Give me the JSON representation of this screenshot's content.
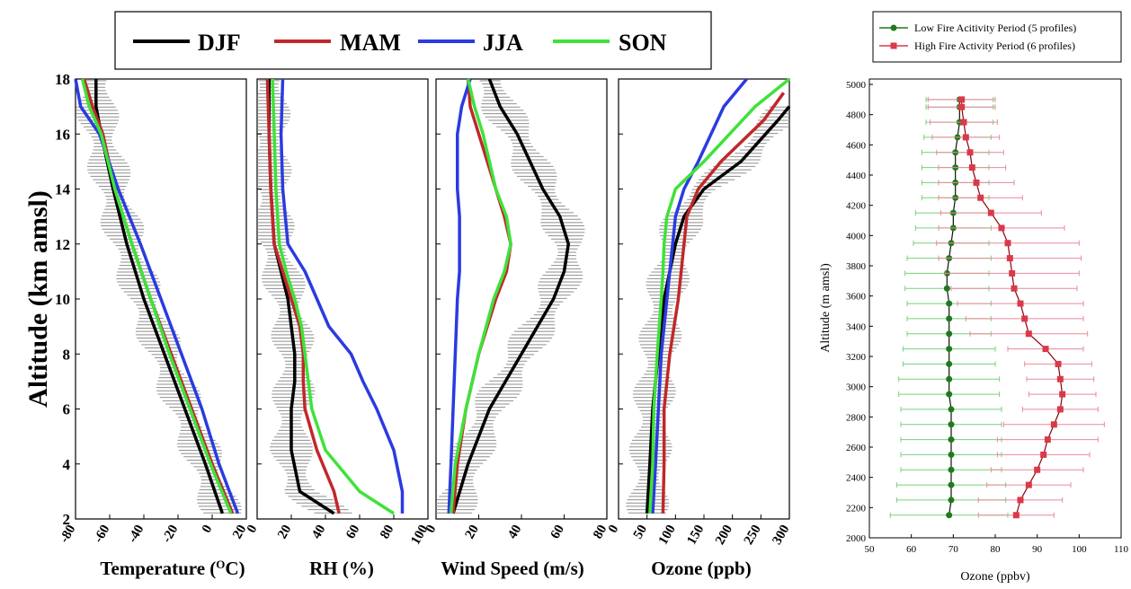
{
  "left_figure": {
    "legend": [
      {
        "label": "DJF",
        "color": "#000000"
      },
      {
        "label": "MAM",
        "color": "#c0282a"
      },
      {
        "label": "JJA",
        "color": "#2a3be0"
      },
      {
        "label": "SON",
        "color": "#3fe23a"
      }
    ],
    "y_axis_label": "Altitude (km amsl)",
    "y_ticks": [
      "2",
      "4",
      "6",
      "8",
      "10",
      "12",
      "14",
      "16",
      "18"
    ],
    "panels": [
      {
        "key": "temp",
        "xlabel_main": "Temperature (",
        "xlabel_sup": "O",
        "xlabel_tail": "C)",
        "x_ticks": [
          "-80",
          "-60",
          "-40",
          "-20",
          "0",
          "20"
        ]
      },
      {
        "key": "rh",
        "xlabel": "RH (%)",
        "x_ticks": [
          "0",
          "20",
          "40",
          "60",
          "80",
          "100"
        ]
      },
      {
        "key": "wind",
        "xlabel": "Wind Speed (m/s)",
        "x_ticks": [
          "0",
          "20",
          "40",
          "60",
          "80"
        ]
      },
      {
        "key": "ozone",
        "xlabel": "Ozone (ppb)",
        "x_ticks": [
          "0",
          "50",
          "100",
          "150",
          "200",
          "250",
          "300"
        ]
      }
    ]
  },
  "right_figure": {
    "legend": [
      {
        "label": "Low Fire Acitivity Period (5 profiles)",
        "color": "#1f7a1f"
      },
      {
        "label": "High Fire Activity Period (6 profiles)",
        "color": "#d93a4a"
      }
    ],
    "y_axis_label": "Altitude (m amsl)",
    "x_axis_label": "Ozone (ppbv)",
    "x_ticks": [
      "50",
      "60",
      "70",
      "80",
      "90",
      "100",
      "110"
    ],
    "y_ticks": [
      "2000",
      "2200",
      "2400",
      "2600",
      "2800",
      "3000",
      "3200",
      "3400",
      "3600",
      "3800",
      "4000",
      "4200",
      "4400",
      "4600",
      "4800",
      "5000"
    ]
  },
  "chart_data": [
    {
      "type": "line",
      "title": "",
      "xlabel": "Temperature (OC)",
      "ylabel": "Altitude (km amsl)",
      "xlim": [
        -80,
        20
      ],
      "ylim": [
        2,
        18
      ],
      "series": [
        {
          "name": "DJF",
          "color": "#000000",
          "x": [
            -68,
            -68,
            -65,
            -58,
            -50,
            -40,
            -28,
            -16,
            -4,
            6
          ],
          "y": [
            18,
            17,
            16,
            14,
            12,
            10,
            8,
            6,
            4,
            2.2
          ]
        },
        {
          "name": "MAM",
          "color": "#c0282a",
          "x": [
            -75,
            -70,
            -64,
            -57,
            -47,
            -36,
            -24,
            -12,
            0,
            12
          ],
          "y": [
            18,
            17,
            16,
            14,
            12,
            10,
            8,
            6,
            4,
            2.2
          ]
        },
        {
          "name": "JJA",
          "color": "#2a3be0",
          "x": [
            -80,
            -77,
            -66,
            -55,
            -42,
            -30,
            -18,
            -6,
            4,
            15
          ],
          "y": [
            18,
            17,
            16,
            14,
            12,
            10,
            8,
            6,
            4,
            2.2
          ]
        },
        {
          "name": "SON",
          "color": "#3fe23a",
          "x": [
            -76,
            -72,
            -65,
            -57,
            -47,
            -36,
            -25,
            -13,
            -1,
            11
          ],
          "y": [
            18,
            17,
            16,
            14,
            12,
            10,
            8,
            6,
            4,
            2.2
          ]
        }
      ]
    },
    {
      "type": "line",
      "title": "",
      "xlabel": "RH (%)",
      "ylabel": "Altitude (km amsl)",
      "xlim": [
        0,
        100
      ],
      "ylim": [
        2,
        18
      ],
      "series": [
        {
          "name": "DJF",
          "color": "#000000",
          "x": [
            7,
            7,
            8,
            10,
            14,
            18,
            20,
            22,
            22,
            20,
            20,
            25,
            45
          ],
          "y": [
            18,
            16,
            14,
            12,
            11,
            10,
            9,
            8,
            7,
            6,
            4.5,
            3,
            2.2
          ]
        },
        {
          "name": "MAM",
          "color": "#c0282a",
          "x": [
            6,
            7,
            8,
            10,
            15,
            20,
            25,
            27,
            27,
            28,
            35,
            45,
            48
          ],
          "y": [
            18,
            16,
            14,
            12,
            11,
            10,
            9,
            8,
            7,
            6,
            4.5,
            3,
            2.2
          ]
        },
        {
          "name": "JJA",
          "color": "#2a3be0",
          "x": [
            15,
            14,
            15,
            18,
            28,
            35,
            42,
            55,
            62,
            70,
            80,
            85,
            85
          ],
          "y": [
            18,
            16,
            14,
            12,
            11,
            10,
            9,
            8,
            7,
            6,
            4.5,
            3,
            2.2
          ]
        },
        {
          "name": "SON",
          "color": "#3fe23a",
          "x": [
            9,
            10,
            11,
            13,
            17,
            22,
            26,
            28,
            30,
            32,
            40,
            60,
            80
          ],
          "y": [
            18,
            16,
            14,
            12,
            11,
            10,
            9,
            8,
            7,
            6,
            4.5,
            3,
            2.2
          ]
        }
      ]
    },
    {
      "type": "line",
      "title": "",
      "xlabel": "Wind Speed (m/s)",
      "ylabel": "Altitude (km amsl)",
      "xlim": [
        0,
        80
      ],
      "ylim": [
        2,
        18
      ],
      "series": [
        {
          "name": "DJF",
          "color": "#000000",
          "x": [
            25,
            30,
            38,
            50,
            58,
            62,
            60,
            55,
            40,
            25,
            15,
            8
          ],
          "y": [
            18,
            17,
            16,
            14,
            13,
            12,
            11,
            10,
            8,
            6,
            4,
            2.2
          ]
        },
        {
          "name": "MAM",
          "color": "#c0282a",
          "x": [
            15,
            16,
            20,
            28,
            32,
            35,
            33,
            28,
            20,
            14,
            10,
            8
          ],
          "y": [
            18,
            17,
            16,
            14,
            13,
            12,
            11,
            10,
            8,
            6,
            4,
            2.2
          ]
        },
        {
          "name": "JJA",
          "color": "#2a3be0",
          "x": [
            16,
            12,
            10,
            10,
            11,
            11,
            11,
            10,
            9,
            8,
            7,
            6
          ],
          "y": [
            18,
            17,
            16,
            14,
            13,
            12,
            11,
            10,
            8,
            6,
            4,
            2.2
          ]
        },
        {
          "name": "SON",
          "color": "#3fe23a",
          "x": [
            15,
            18,
            22,
            28,
            33,
            35,
            32,
            27,
            20,
            14,
            9,
            7
          ],
          "y": [
            18,
            17,
            16,
            14,
            13,
            12,
            11,
            10,
            8,
            6,
            4,
            2.2
          ]
        }
      ]
    },
    {
      "type": "line",
      "title": "",
      "xlabel": "Ozone (ppb)",
      "ylabel": "Altitude (km amsl)",
      "xlim": [
        0,
        300
      ],
      "ylim": [
        2,
        18
      ],
      "series": [
        {
          "name": "DJF",
          "color": "#000000",
          "x": [
            300,
            280,
            215,
            150,
            115,
            100,
            90,
            80,
            70,
            60,
            55,
            50
          ],
          "y": [
            17,
            16.5,
            15,
            14,
            13,
            12,
            11,
            10,
            8,
            6,
            4,
            2.2
          ]
        },
        {
          "name": "MAM",
          "color": "#c0282a",
          "x": [
            290,
            255,
            180,
            140,
            120,
            115,
            110,
            105,
            90,
            80,
            80,
            78
          ],
          "y": [
            17.5,
            16.5,
            15,
            14,
            13,
            12,
            11,
            10,
            8,
            6,
            4,
            2.2
          ]
        },
        {
          "name": "JJA",
          "color": "#2a3be0",
          "x": [
            225,
            185,
            140,
            115,
            100,
            95,
            90,
            85,
            75,
            70,
            65,
            60
          ],
          "y": [
            18,
            17,
            15,
            14,
            13,
            12,
            11,
            10,
            8,
            6,
            4,
            2.2
          ]
        },
        {
          "name": "SON",
          "color": "#3fe23a",
          "x": [
            300,
            240,
            150,
            100,
            85,
            80,
            78,
            75,
            68,
            62,
            60,
            55
          ],
          "y": [
            18,
            17,
            15,
            14,
            13,
            12,
            11,
            10,
            8,
            6,
            4,
            2.2
          ]
        }
      ]
    },
    {
      "type": "line",
      "title": "",
      "xlabel": "Ozone (ppbv)",
      "ylabel": "Altitude (m amsl)",
      "xlim": [
        50,
        110
      ],
      "ylim": [
        2000,
        5000
      ],
      "series": [
        {
          "name": "Low Fire Acitivity Period (5 profiles)",
          "color": "#1f7a1f",
          "y": [
            2150,
            2250,
            2350,
            2450,
            2550,
            2650,
            2750,
            2850,
            2950,
            3050,
            3150,
            3250,
            3350,
            3450,
            3550,
            3650,
            3750,
            3850,
            3950,
            4050,
            4150,
            4250,
            4350,
            4450,
            4550,
            4650,
            4750,
            4850,
            4900
          ],
          "x": [
            69,
            69.5,
            69.5,
            69.5,
            69.5,
            69.5,
            69.5,
            69.5,
            69,
            69,
            69,
            69,
            69,
            69,
            69,
            68.5,
            68.5,
            69,
            69.5,
            70,
            70,
            70.5,
            70.5,
            70.5,
            70.5,
            71,
            71.5,
            71.5,
            71.5
          ],
          "err": [
            14,
            13,
            13,
            12,
            12,
            12,
            12,
            12,
            12,
            12,
            11,
            11,
            10,
            10,
            10,
            10,
            10,
            10,
            9,
            9,
            9,
            8,
            8,
            8,
            8,
            8,
            8,
            8,
            8
          ]
        },
        {
          "name": "High Fire Activity Period (6 profiles)",
          "color": "#d93a4a",
          "y": [
            2150,
            2250,
            2350,
            2450,
            2550,
            2650,
            2750,
            2850,
            2950,
            3050,
            3150,
            3250,
            3350,
            3450,
            3550,
            3650,
            3750,
            3850,
            3950,
            4050,
            4150,
            4250,
            4350,
            4450,
            4550,
            4650,
            4750,
            4850,
            4900
          ],
          "x": [
            85,
            86,
            88,
            90,
            91.5,
            92.5,
            94,
            95.5,
            96,
            95.5,
            95,
            92,
            88,
            87,
            86,
            84.5,
            84,
            83.5,
            83,
            81.5,
            79,
            76.5,
            75.5,
            74.5,
            74,
            73,
            72.5,
            72,
            72
          ],
          "err": [
            9,
            10,
            10,
            11,
            11,
            12,
            12,
            9,
            8,
            8,
            8,
            9,
            14,
            14,
            15,
            15,
            16,
            17,
            17,
            15,
            12,
            10,
            9,
            8,
            8,
            8,
            8,
            8,
            8
          ]
        }
      ]
    }
  ]
}
